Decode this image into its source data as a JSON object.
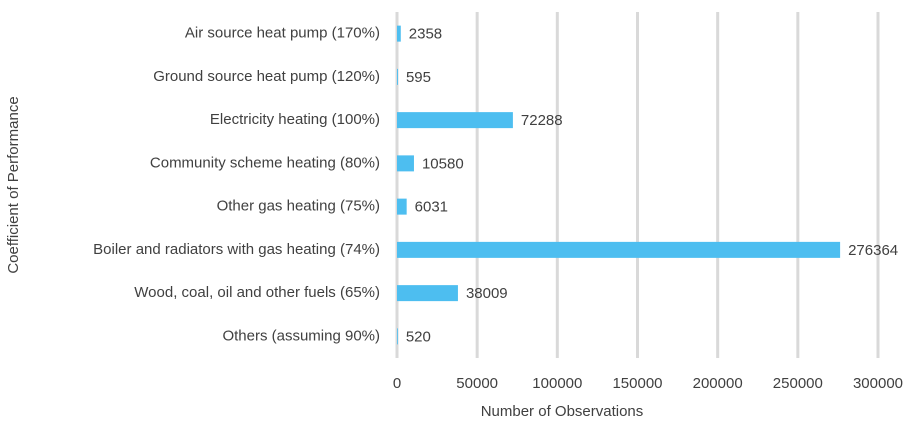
{
  "chart_data": {
    "type": "bar",
    "orientation": "horizontal",
    "categories": [
      "Air source heat pump (170%)",
      "Ground source heat pump (120%)",
      "Electricity heating (100%)",
      "Community scheme heating (80%)",
      "Other gas heating (75%)",
      "Boiler and radiators with gas heating (74%)",
      "Wood, coal, oil and other fuels (65%)",
      "Others (assuming 90%)"
    ],
    "values": [
      2358,
      595,
      72288,
      10580,
      6031,
      276364,
      38009,
      520
    ],
    "color": "#4dbef0",
    "xlim": [
      0,
      300000
    ],
    "xticks": [
      0,
      50000,
      100000,
      150000,
      200000,
      250000,
      300000
    ],
    "xlabel": "Number of Observations",
    "ylabel": "Coefficient of Performance",
    "grid": true
  }
}
